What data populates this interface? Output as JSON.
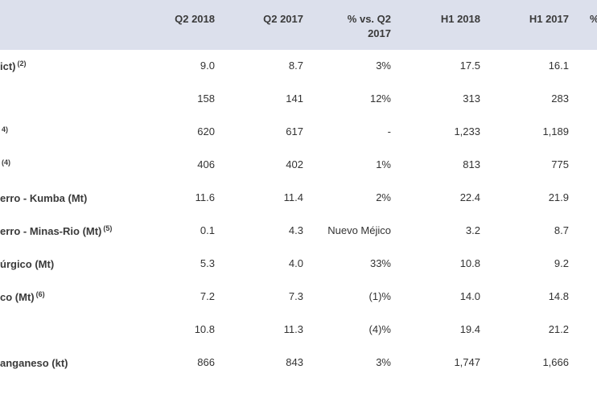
{
  "headers": {
    "q2_2018": "Q2 2018",
    "q2_2017": "Q2 2017",
    "pct_q2_line1": "% vs. Q2",
    "pct_q2_line2": "2017",
    "h1_2018": "H1 2018",
    "h1_2017": "H1 2017",
    "pct_h1": "%"
  },
  "rows": [
    {
      "label": "ict)",
      "sup": "(2)",
      "q2_2018": "9.0",
      "q2_2017": "8.7",
      "pct": "3%",
      "h1_2018": "17.5",
      "h1_2017": "16.1"
    },
    {
      "label": "",
      "sup": "",
      "q2_2018": "158",
      "q2_2017": "141",
      "pct": "12%",
      "h1_2018": "313",
      "h1_2017": "283"
    },
    {
      "label": "",
      "sup": "4)",
      "q2_2018": "620",
      "q2_2017": "617",
      "pct": "-",
      "h1_2018": "1,233",
      "h1_2017": "1,189"
    },
    {
      "label": "",
      "sup": "(4)",
      "q2_2018": "406",
      "q2_2017": "402",
      "pct": "1%",
      "h1_2018": "813",
      "h1_2017": "775"
    },
    {
      "label": "erro - Kumba (Mt)",
      "sup": "",
      "q2_2018": "11.6",
      "q2_2017": "11.4",
      "pct": "2%",
      "h1_2018": "22.4",
      "h1_2017": "21.9"
    },
    {
      "label": "erro - Minas-Rio (Mt)",
      "sup": "(5)",
      "q2_2018": "0.1",
      "q2_2017": "4.3",
      "pct": "Nuevo Méjico",
      "h1_2018": "3.2",
      "h1_2017": "8.7"
    },
    {
      "label": "úrgico (Mt)",
      "sup": "",
      "q2_2018": "5.3",
      "q2_2017": "4.0",
      "pct": "33%",
      "h1_2018": "10.8",
      "h1_2017": "9.2"
    },
    {
      "label": "co (Mt)",
      "sup": "(6)",
      "q2_2018": "7.2",
      "q2_2017": "7.3",
      "pct": "(1)%",
      "h1_2018": "14.0",
      "h1_2017": "14.8"
    },
    {
      "label": "",
      "sup": "",
      "q2_2018": "10.8",
      "q2_2017": "11.3",
      "pct": "(4)%",
      "h1_2018": "19.4",
      "h1_2017": "21.2"
    },
    {
      "label": "anganeso (kt)",
      "sup": "",
      "q2_2018": "866",
      "q2_2017": "843",
      "pct": "3%",
      "h1_2018": "1,747",
      "h1_2017": "1,666"
    }
  ]
}
